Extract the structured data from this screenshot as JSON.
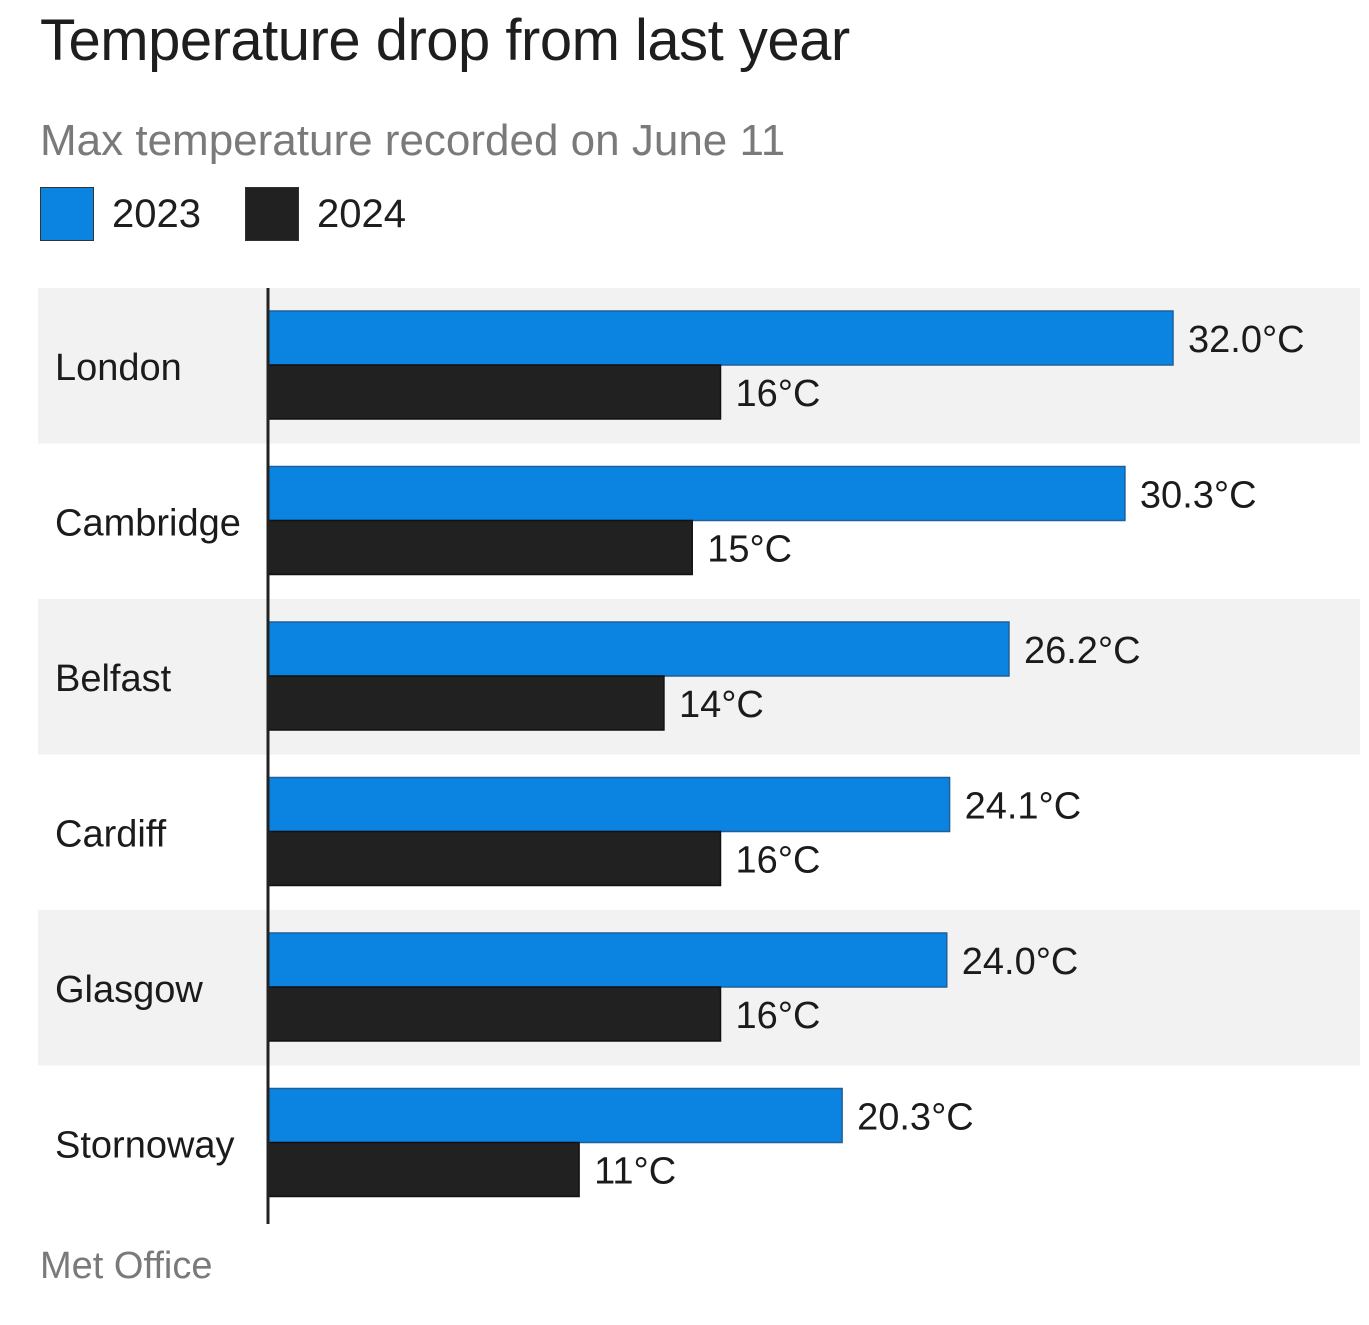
{
  "title": "Temperature drop from last year",
  "subtitle": "Max temperature recorded on June 11",
  "source": "Met Office",
  "colors": {
    "series_2023": "#0a84e0",
    "series_2024": "#212121",
    "band": "#f2f2f2",
    "axis": "#222222"
  },
  "chart_data": {
    "type": "bar",
    "orientation": "horizontal",
    "title": "Temperature drop from last year",
    "subtitle": "Max temperature recorded on June 11",
    "categories": [
      "London",
      "Cambridge",
      "Belfast",
      "Cardiff",
      "Glasgow",
      "Stornoway"
    ],
    "series": [
      {
        "name": "2023",
        "values": [
          32.0,
          30.3,
          26.2,
          24.1,
          24.0,
          20.3
        ],
        "labels": [
          "32.0°C",
          "30.3°C",
          "26.2°C",
          "24.1°C",
          "24.0°C",
          "20.3°C"
        ]
      },
      {
        "name": "2024",
        "values": [
          16,
          15,
          14,
          16,
          16,
          11
        ],
        "labels": [
          "16°C",
          "15°C",
          "14°C",
          "16°C",
          "16°C",
          "11°C"
        ]
      }
    ],
    "xlim": [
      0,
      32.0
    ],
    "xlabel": "",
    "ylabel": "",
    "legend": "top-left",
    "grid": false
  }
}
